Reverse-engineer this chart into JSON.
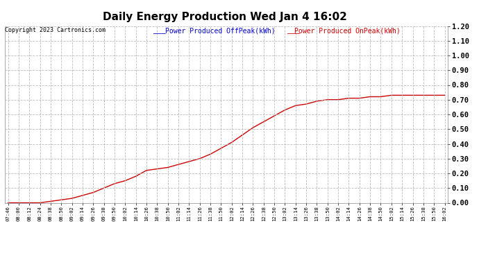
{
  "title": "Daily Energy Production Wed Jan 4 16:02",
  "copyright": "Copyright 2023 Cartronics.com",
  "legend_offpeak": "Power Produced OffPeak(kWh)",
  "legend_onpeak": "Power Produced OnPeak(kWh)",
  "offpeak_color": "#0000cc",
  "onpeak_color": "#cc0000",
  "background_color": "#ffffff",
  "grid_color": "#bbbbbb",
  "ylim": [
    0.0,
    1.2
  ],
  "yticks": [
    0.0,
    0.1,
    0.2,
    0.3,
    0.4,
    0.5,
    0.6,
    0.7,
    0.8,
    0.9,
    1.0,
    1.1,
    1.2
  ],
  "x_labels": [
    "07:46",
    "08:00",
    "08:12",
    "08:24",
    "08:38",
    "08:50",
    "09:02",
    "09:14",
    "09:26",
    "09:38",
    "09:50",
    "10:02",
    "10:14",
    "10:26",
    "10:38",
    "10:50",
    "11:02",
    "11:14",
    "11:26",
    "11:38",
    "11:50",
    "12:02",
    "12:14",
    "12:26",
    "12:38",
    "12:50",
    "13:02",
    "13:14",
    "13:26",
    "13:38",
    "13:50",
    "14:02",
    "14:14",
    "14:26",
    "14:38",
    "14:50",
    "15:02",
    "15:14",
    "15:26",
    "15:38",
    "15:50",
    "16:02"
  ],
  "onpeak_values": [
    0.0,
    0.0,
    0.0,
    0.0,
    0.01,
    0.02,
    0.03,
    0.05,
    0.07,
    0.1,
    0.13,
    0.15,
    0.18,
    0.22,
    0.23,
    0.24,
    0.26,
    0.28,
    0.3,
    0.33,
    0.37,
    0.41,
    0.46,
    0.51,
    0.55,
    0.59,
    0.63,
    0.66,
    0.67,
    0.69,
    0.7,
    0.7,
    0.71,
    0.71,
    0.72,
    0.72,
    0.73,
    0.73,
    0.73,
    0.73,
    0.73,
    0.73
  ]
}
